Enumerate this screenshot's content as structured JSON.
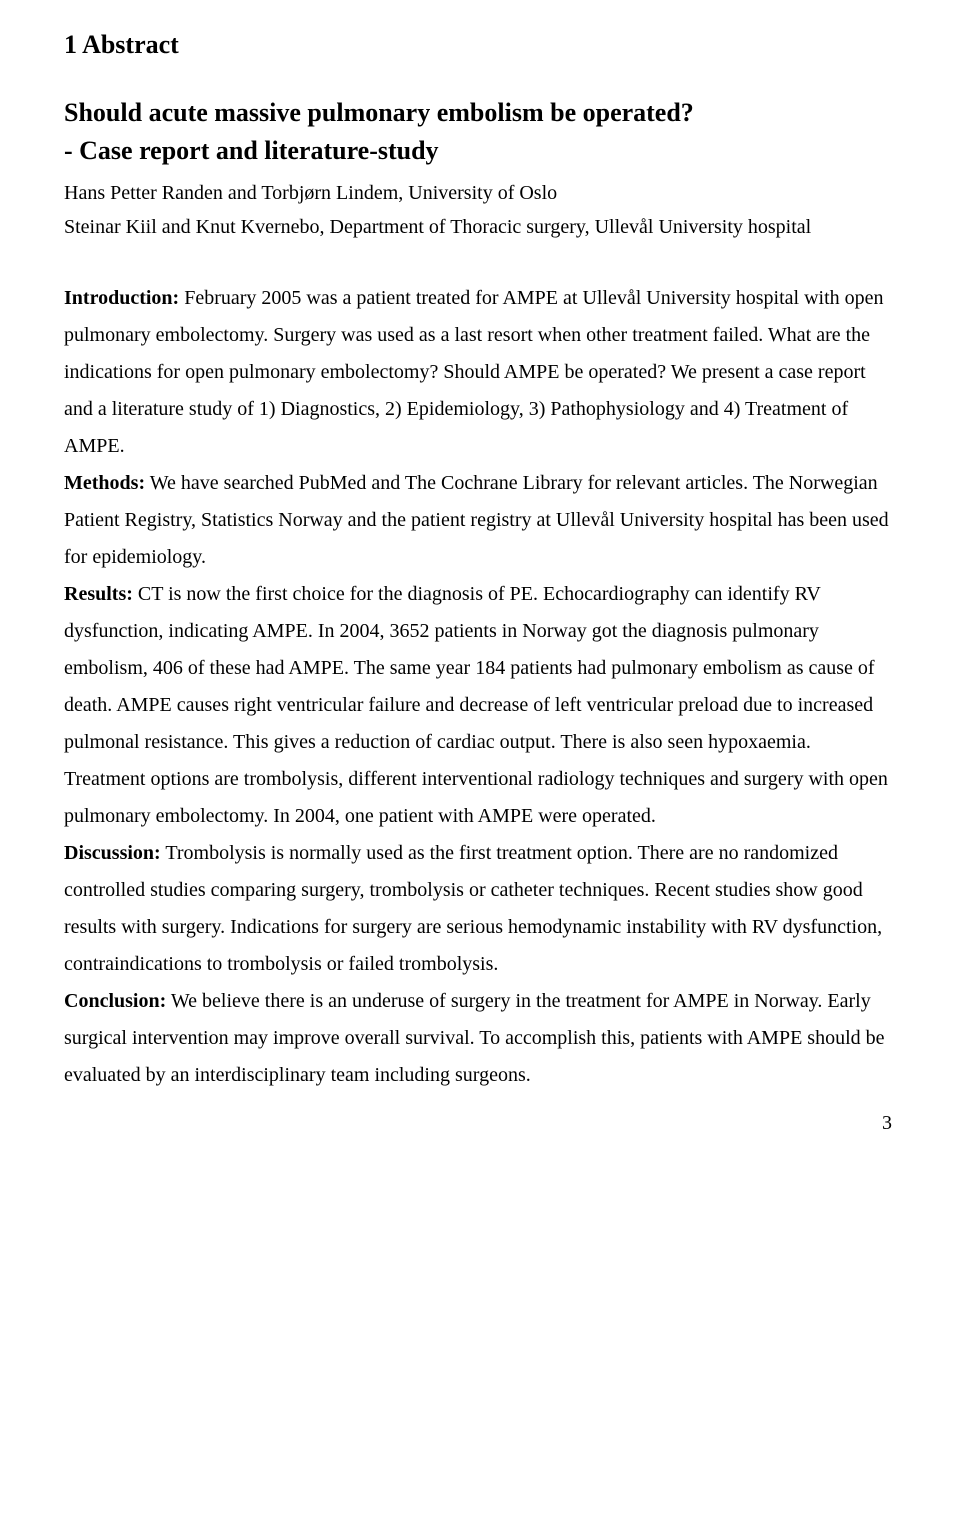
{
  "heading": "1 Abstract",
  "title": "Should acute massive pulmonary embolism be operated?",
  "subtitle": "- Case report and literature-study",
  "authors": "Hans Petter Randen and Torbjørn Lindem, University of Oslo",
  "affiliation": "Steinar Kiil and Knut Kvernebo, Department of Thoracic surgery, Ullevål University hospital",
  "labels": {
    "introduction": "Introduction:",
    "methods": "Methods:",
    "results": "Results:",
    "discussion": "Discussion:",
    "conclusion": "Conclusion:"
  },
  "text": {
    "introduction": " February 2005 was a patient treated for AMPE at Ullevål University hospital with open pulmonary embolectomy. Surgery was used as a last resort when other treatment failed. What are the indications for open pulmonary embolectomy? Should AMPE be operated? We present a case report and a literature study of 1) Diagnostics, 2) Epidemiology, 3) Pathophysiology and 4) Treatment of AMPE.",
    "methods": " We have searched PubMed and The Cochrane Library for relevant articles. The Norwegian Patient Registry, Statistics Norway and the patient registry at Ullevål University hospital has been used for epidemiology.",
    "results": " CT is now the first choice for the diagnosis of PE. Echocardiography can identify RV dysfunction, indicating AMPE. In 2004, 3652 patients in Norway got the diagnosis pulmonary embolism, 406 of these had AMPE. The same year 184 patients had pulmonary embolism as cause of death. AMPE causes right ventricular failure and decrease of left ventricular preload due to increased pulmonal resistance. This gives a reduction of cardiac output. There is also seen hypoxaemia. Treatment options are trombolysis, different interventional radiology techniques and surgery with open pulmonary embolectomy. In 2004, one patient with AMPE were operated.",
    "discussion": " Trombolysis is normally used as the first treatment option. There are no randomized controlled studies comparing surgery, trombolysis or catheter techniques. Recent studies show good results with surgery. Indications for surgery are serious hemodynamic instability with RV dysfunction, contraindications to trombolysis or failed trombolysis.",
    "conclusion": " We believe there is an underuse of surgery in the treatment for AMPE in Norway. Early surgical intervention may improve overall survival. To accomplish this, patients with AMPE should be evaluated by an interdisciplinary team including surgeons."
  },
  "pageNumber": "3"
}
